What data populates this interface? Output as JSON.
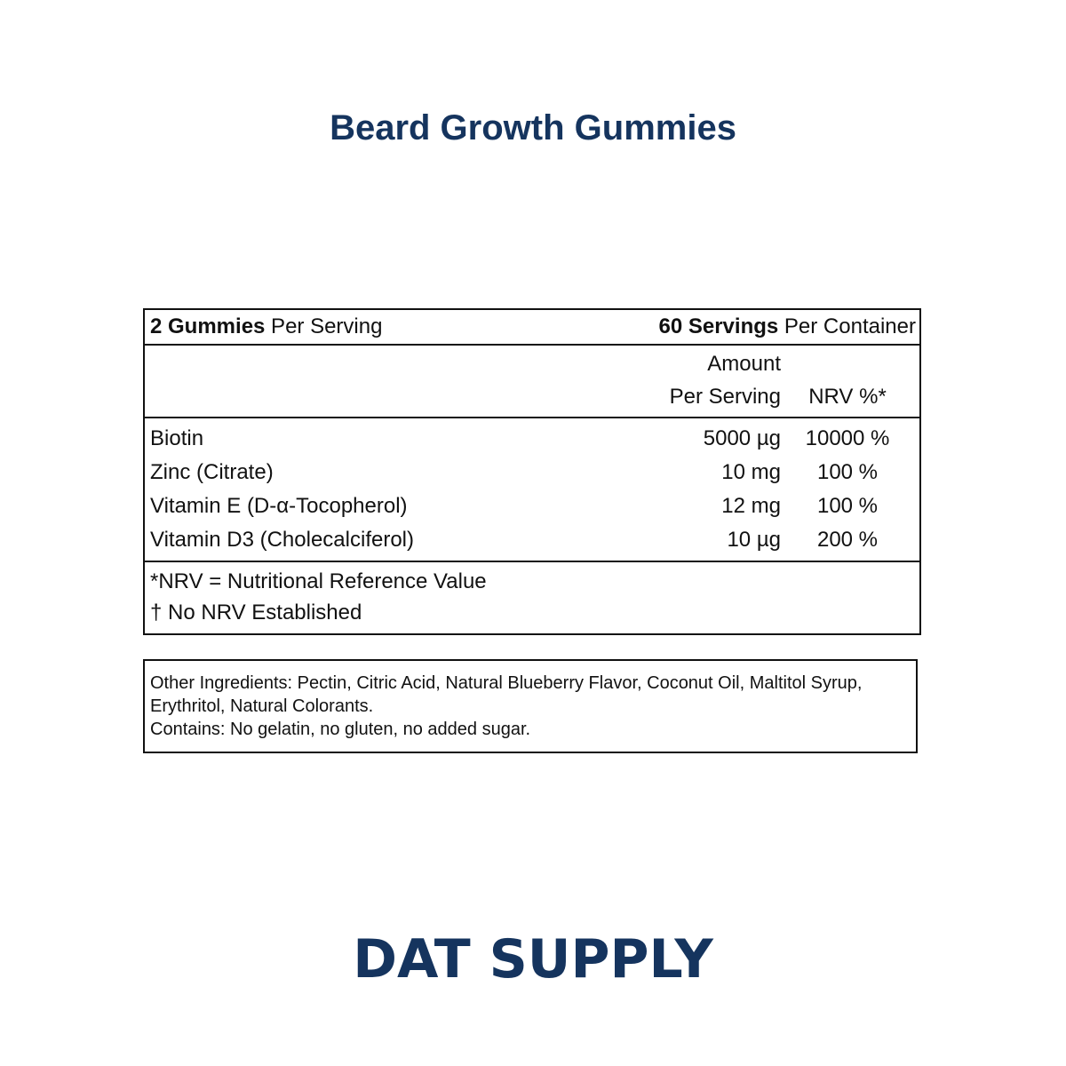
{
  "title": "Beard Growth Gummies",
  "colors": {
    "brand": "#15345e",
    "text": "#111111"
  },
  "facts": {
    "serving_bold": "2 Gummies",
    "serving_rest": " Per Serving",
    "servings_bold": "60 Servings",
    "servings_rest": " Per Container",
    "col_amount_1": "Amount",
    "col_amount_2": "Per Serving",
    "col_nrv": "NRV %*",
    "rows": [
      {
        "name": "Biotin",
        "amount": "5000 µg",
        "nrv": "10000 %"
      },
      {
        "name": "Zinc (Citrate)",
        "amount": "10 mg",
        "nrv": "100 %"
      },
      {
        "name": "Vitamin E (D-α-Tocopherol)",
        "amount": "12 mg",
        "nrv": "100 %"
      },
      {
        "name": "Vitamin D3 (Cholecalciferol)",
        "amount": "10 µg",
        "nrv": "200 %"
      }
    ],
    "footnote_1": "*NRV = Nutritional Reference Value",
    "footnote_2": "† No NRV Established"
  },
  "ingredients": {
    "other": "Other Ingredients: Pectin, Citric Acid, Natural Blueberry Flavor, Coconut Oil, Maltitol Syrup, Erythritol, Natural Colorants.",
    "contains": "Contains: No gelatin, no gluten, no added sugar."
  },
  "brand": "DAT SUPPLY"
}
